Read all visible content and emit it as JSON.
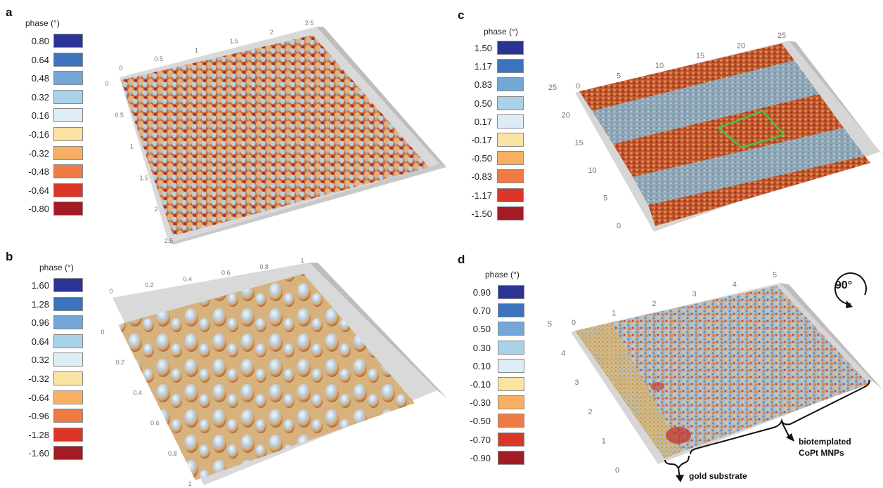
{
  "panels": [
    {
      "label": "a",
      "legend_title": "phase (°)",
      "legend": [
        {
          "value": "0.80",
          "color": "#2b3494"
        },
        {
          "value": "0.64",
          "color": "#3d72bd"
        },
        {
          "value": "0.48",
          "color": "#74a7d6"
        },
        {
          "value": "0.32",
          "color": "#a8d2e8"
        },
        {
          "value": "0.16",
          "color": "#dcedf6"
        },
        {
          "value": "-0.16",
          "color": "#fbe3a4"
        },
        {
          "value": "-0.32",
          "color": "#f7b062"
        },
        {
          "value": "-0.48",
          "color": "#ee7a44"
        },
        {
          "value": "-0.64",
          "color": "#db3628"
        },
        {
          "value": "-0.80",
          "color": "#a31b24"
        }
      ],
      "x_ticks": [
        "0",
        "0.5",
        "1",
        "1.5",
        "2",
        "2.5"
      ],
      "y_ticks": [
        "0",
        "0.5",
        "1",
        "1.5",
        "2",
        "2.5"
      ]
    },
    {
      "label": "b",
      "legend_title": "phase (°)",
      "legend": [
        {
          "value": "1.60",
          "color": "#2b3494"
        },
        {
          "value": "1.28",
          "color": "#3d72bd"
        },
        {
          "value": "0.96",
          "color": "#74a7d6"
        },
        {
          "value": "0.64",
          "color": "#a8d2e8"
        },
        {
          "value": "0.32",
          "color": "#dcedf6"
        },
        {
          "value": "-0.32",
          "color": "#fbe3a4"
        },
        {
          "value": "-0.64",
          "color": "#f7b062"
        },
        {
          "value": "-0.96",
          "color": "#ee7a44"
        },
        {
          "value": "-1.28",
          "color": "#db3628"
        },
        {
          "value": "-1.60",
          "color": "#a31b24"
        }
      ],
      "x_ticks": [
        "0",
        "0.2",
        "0.4",
        "0.6",
        "0.8",
        "1"
      ],
      "y_ticks": [
        "0",
        "0.2",
        "0.4",
        "0.6",
        "0.8",
        "1"
      ]
    },
    {
      "label": "c",
      "legend_title": "phase (°)",
      "legend": [
        {
          "value": "1.50",
          "color": "#2b3494"
        },
        {
          "value": "1.17",
          "color": "#3d72bd"
        },
        {
          "value": "0.83",
          "color": "#74a7d6"
        },
        {
          "value": "0.50",
          "color": "#a8d2e8"
        },
        {
          "value": "0.17",
          "color": "#dcedf6"
        },
        {
          "value": "-0.17",
          "color": "#fbe3a4"
        },
        {
          "value": "-0.50",
          "color": "#f7b062"
        },
        {
          "value": "-0.83",
          "color": "#ee7a44"
        },
        {
          "value": "-1.17",
          "color": "#db3628"
        },
        {
          "value": "-1.50",
          "color": "#a31b24"
        }
      ],
      "x_ticks": [
        "0",
        "5",
        "10",
        "15",
        "20",
        "25"
      ],
      "y_ticks": [
        "25",
        "20",
        "15",
        "10",
        "5",
        "0"
      ]
    },
    {
      "label": "d",
      "legend_title": "phase (°)",
      "legend": [
        {
          "value": "0.90",
          "color": "#2b3494"
        },
        {
          "value": "0.70",
          "color": "#3d72bd"
        },
        {
          "value": "0.50",
          "color": "#74a7d6"
        },
        {
          "value": "0.30",
          "color": "#a8d2e8"
        },
        {
          "value": "0.10",
          "color": "#dcedf6"
        },
        {
          "value": "-0.10",
          "color": "#fbe3a4"
        },
        {
          "value": "-0.30",
          "color": "#f7b062"
        },
        {
          "value": "-0.50",
          "color": "#ee7a44"
        },
        {
          "value": "-0.70",
          "color": "#db3628"
        },
        {
          "value": "-0.90",
          "color": "#a31b24"
        }
      ],
      "x_ticks": [
        "0",
        "1",
        "2",
        "3",
        "4",
        "5"
      ],
      "y_ticks": [
        "5",
        "4",
        "3",
        "2",
        "1",
        "0"
      ],
      "rotation_label": "90°",
      "annotation_mnp_line1": "biotemplated",
      "annotation_mnp_line2": "CoPt MNPs",
      "annotation_gold": "gold substrate"
    }
  ]
}
